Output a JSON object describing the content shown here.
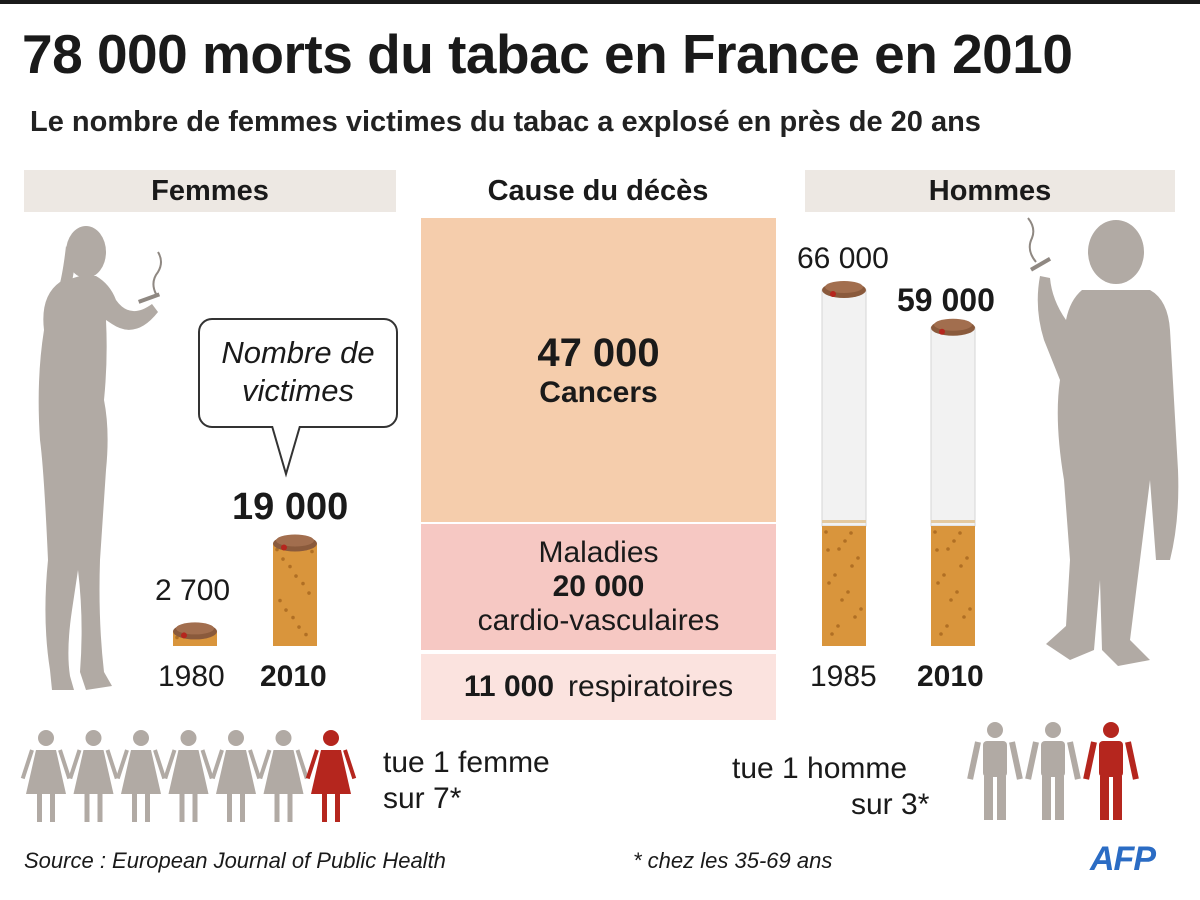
{
  "title": "78 000 morts du tabac en France en 2010",
  "subtitle": "Le nombre de femmes victimes du tabac a explosé en près de 20 ans",
  "headers": {
    "women": "Femmes",
    "cause": "Cause du décès",
    "men": "Hommes"
  },
  "bubble": {
    "line1": "Nombre de",
    "line2": "victimes"
  },
  "chart_data": [
    {
      "type": "bar",
      "series": [
        {
          "name": "Femmes",
          "values": [
            2700,
            19000
          ]
        }
      ],
      "categories": [
        "1980",
        "2010"
      ],
      "value_labels": [
        "2 700",
        "19 000"
      ]
    },
    {
      "type": "bar",
      "series": [
        {
          "name": "Hommes",
          "values": [
            66000,
            59000
          ]
        }
      ],
      "categories": [
        "1985",
        "2010"
      ],
      "value_labels": [
        "66 000",
        "59 000"
      ]
    },
    {
      "type": "table",
      "causes": [
        {
          "value": 47000,
          "value_label": "47 000",
          "label": "Cancers"
        },
        {
          "value": 20000,
          "value_label": "20 000",
          "label_top": "Maladies",
          "label_bottom": "cardio-vasculaires"
        },
        {
          "value": 11000,
          "value_label": "11 000",
          "label": "respiratoires"
        }
      ]
    }
  ],
  "ratios": {
    "women": {
      "line1": "tue 1 femme",
      "line2": "sur 7*",
      "victims": 1,
      "total": 7
    },
    "men": {
      "line1": "tue 1 homme",
      "line2": "sur 3*",
      "victims": 1,
      "total": 3
    }
  },
  "footer": {
    "source": "Source : European Journal of Public Health",
    "note": "* chez les 35-69 ans",
    "logo": "AFP"
  },
  "colors": {
    "silhouette": "#b1aaa4",
    "victim": "#b5261e",
    "filter": "#d9953c",
    "cancer_bg": "#f5cdac",
    "cardio_bg": "#f6c8c3",
    "resp_bg": "#fbe3df",
    "header_bg": "#ede8e3",
    "logo": "#2b6cc4"
  }
}
